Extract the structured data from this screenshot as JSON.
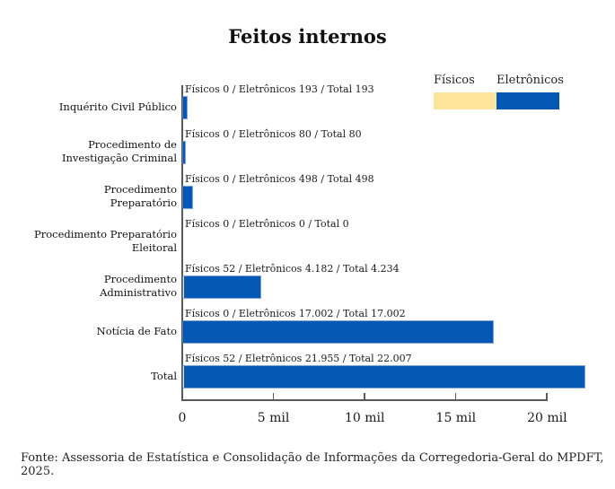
{
  "title": "Feitos internos",
  "legend": {
    "fisicos": "Físicos",
    "eletronicos": "Eletrônicos"
  },
  "colors": {
    "fisicos": "#FCE49B",
    "eletronicos": "#0457B3",
    "axis": "#595959"
  },
  "chart_data": {
    "type": "bar",
    "orientation": "horizontal",
    "title": "Feitos internos",
    "legend_position": "top-right",
    "series_names": [
      "Físicos",
      "Eletrônicos"
    ],
    "x_axis": {
      "tick_labels": [
        "0",
        "5 mil",
        "10 mil",
        "15 mil",
        "20 mil"
      ],
      "tick_values": [
        0,
        5000,
        10000,
        15000,
        20000
      ],
      "max_value": 22007
    },
    "rows": [
      {
        "category": "Inquérito Civil Público",
        "fisicos": 0,
        "eletronicos": 193,
        "total": 193,
        "bar_label": "Físicos 0 / Eletrônicos 193 / Total 193"
      },
      {
        "category": "Procedimento de\nInvestigação Criminal",
        "fisicos": 0,
        "eletronicos": 80,
        "total": 80,
        "bar_label": "Físicos 0 / Eletrônicos 80 / Total 80"
      },
      {
        "category": "Procedimento\nPreparatório",
        "fisicos": 0,
        "eletronicos": 498,
        "total": 498,
        "bar_label": "Físicos 0 / Eletrônicos 498 / Total 498"
      },
      {
        "category": "Procedimento Preparatório\nEleitoral",
        "fisicos": 0,
        "eletronicos": 0,
        "total": 0,
        "bar_label": "Físicos 0 / Eletrônicos 0 / Total 0"
      },
      {
        "category": "Procedimento\nAdministrativo",
        "fisicos": 52,
        "eletronicos": 4182,
        "total": 4234,
        "bar_label": "Físicos 52 / Eletrônicos 4.182 / Total 4.234"
      },
      {
        "category": "Notícia de Fato",
        "fisicos": 0,
        "eletronicos": 17002,
        "total": 17002,
        "bar_label": "Físicos 0 / Eletrônicos 17.002 / Total 17.002"
      },
      {
        "category": "Total",
        "fisicos": 52,
        "eletronicos": 21955,
        "total": 22007,
        "bar_label": "Físicos 52 / Eletrônicos 21.955 / Total 22.007"
      }
    ]
  },
  "footer": "Fonte: Assessoria de Estatística e Consolidação de Informações da Corregedoria-Geral do MPDFT, 2025."
}
